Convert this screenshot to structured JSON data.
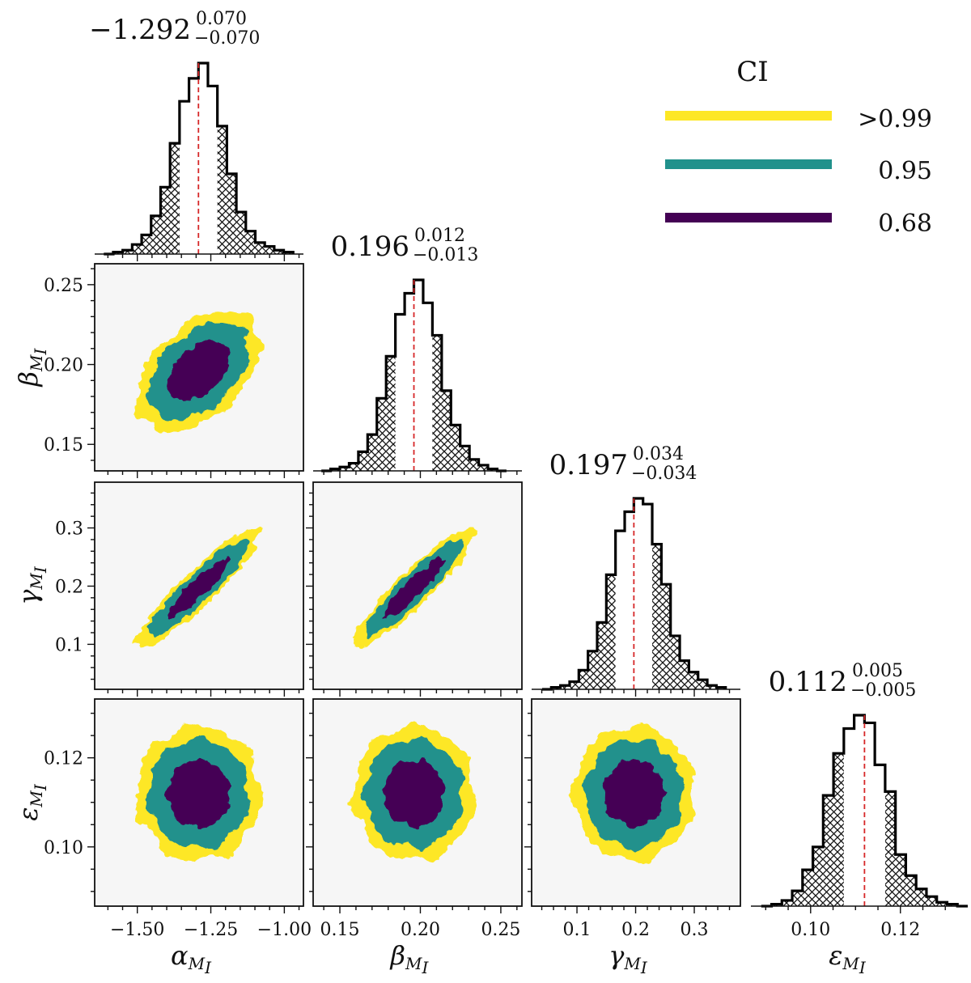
{
  "chart_data": {
    "type": "corner",
    "parameters": [
      {
        "symbol": "α",
        "sub": "M",
        "subsub": "I",
        "name": "alpha_MI",
        "range": [
          -1.645,
          -0.935
        ],
        "ticks": [
          -1.5,
          -1.25,
          -1.0
        ],
        "tick_labels": [
          "−1.50",
          "−1.25",
          "−1.00"
        ],
        "minor_step": 0.05,
        "median": -1.292,
        "plus": "0.070",
        "minus": "−0.070",
        "median_label": "−1.292",
        "std": 0.07
      },
      {
        "symbol": "β",
        "sub": "M",
        "subsub": "I",
        "name": "beta_MI",
        "range": [
          0.1334,
          0.2631
        ],
        "ticks": [
          0.15,
          0.2,
          0.25
        ],
        "tick_labels": [
          "0.15",
          "0.20",
          "0.25"
        ],
        "minor_step": 0.01,
        "median": 0.196,
        "plus": "0.012",
        "minus": "−0.013",
        "median_label": "0.196",
        "std": 0.0125
      },
      {
        "symbol": "γ",
        "sub": "M",
        "subsub": "I",
        "name": "gamma_MI",
        "range": [
          0.0227,
          0.3786
        ],
        "ticks": [
          0.1,
          0.2,
          0.3
        ],
        "tick_labels": [
          "0.1",
          "0.2",
          "0.3"
        ],
        "minor_step": 0.02,
        "median": 0.197,
        "plus": "0.034",
        "minus": "−0.034",
        "median_label": "0.197",
        "std": 0.034
      },
      {
        "symbol": "ε",
        "sub": "M",
        "subsub": "I",
        "name": "epsilon_MI",
        "range": [
          0.0867,
          0.1332
        ],
        "ticks": [
          0.1,
          0.12
        ],
        "tick_labels": [
          "0.10",
          "0.12"
        ],
        "minor_step": 0.005,
        "median": 0.112,
        "plus": "0.005",
        "minus": "−0.005",
        "median_label": "0.112",
        "std": 0.005
      }
    ],
    "correlations": {
      "alpha_beta": 0.45,
      "alpha_gamma": 0.92,
      "beta_gamma": 0.92,
      "alpha_epsilon": 0.0,
      "beta_epsilon": 0.0,
      "gamma_epsilon": 0.0
    },
    "histograms": {
      "bins": 20,
      "relative_heights": [
        [
          0.0,
          0.01,
          0.02,
          0.05,
          0.1,
          0.2,
          0.35,
          0.58,
          0.8,
          0.92,
          1.0,
          0.88,
          0.67,
          0.42,
          0.22,
          0.12,
          0.06,
          0.04,
          0.02,
          0.01
        ],
        [
          0.0,
          0.01,
          0.02,
          0.04,
          0.1,
          0.19,
          0.38,
          0.6,
          0.82,
          0.93,
          1.0,
          0.88,
          0.71,
          0.42,
          0.24,
          0.13,
          0.06,
          0.03,
          0.01,
          0.0
        ],
        [
          0.0,
          0.01,
          0.02,
          0.04,
          0.1,
          0.2,
          0.35,
          0.6,
          0.83,
          0.93,
          1.0,
          0.97,
          0.76,
          0.55,
          0.28,
          0.15,
          0.09,
          0.05,
          0.02,
          0.01
        ],
        [
          0.0,
          0.01,
          0.03,
          0.08,
          0.19,
          0.31,
          0.58,
          0.8,
          0.93,
          1.0,
          0.96,
          0.74,
          0.6,
          0.27,
          0.16,
          0.09,
          0.05,
          0.02,
          0.01,
          0.0
        ]
      ],
      "hatched_tails": "outside 68% interval"
    },
    "contour_levels": [
      {
        "label": ">0.99",
        "color": "#fde725"
      },
      {
        "label": "0.95",
        "color": "#21918c"
      },
      {
        "label": "0.68",
        "color": "#440154"
      }
    ],
    "median_line_color": "#d62728",
    "panel_background": "#f6f6f6"
  },
  "legend": {
    "title": "CI",
    "placement": "top-right",
    "items": [
      {
        "label": ">0.99",
        "color": "#fde725"
      },
      {
        "label": "0.95",
        "color": "#21918c"
      },
      {
        "label": "0.68",
        "color": "#440154"
      }
    ]
  }
}
